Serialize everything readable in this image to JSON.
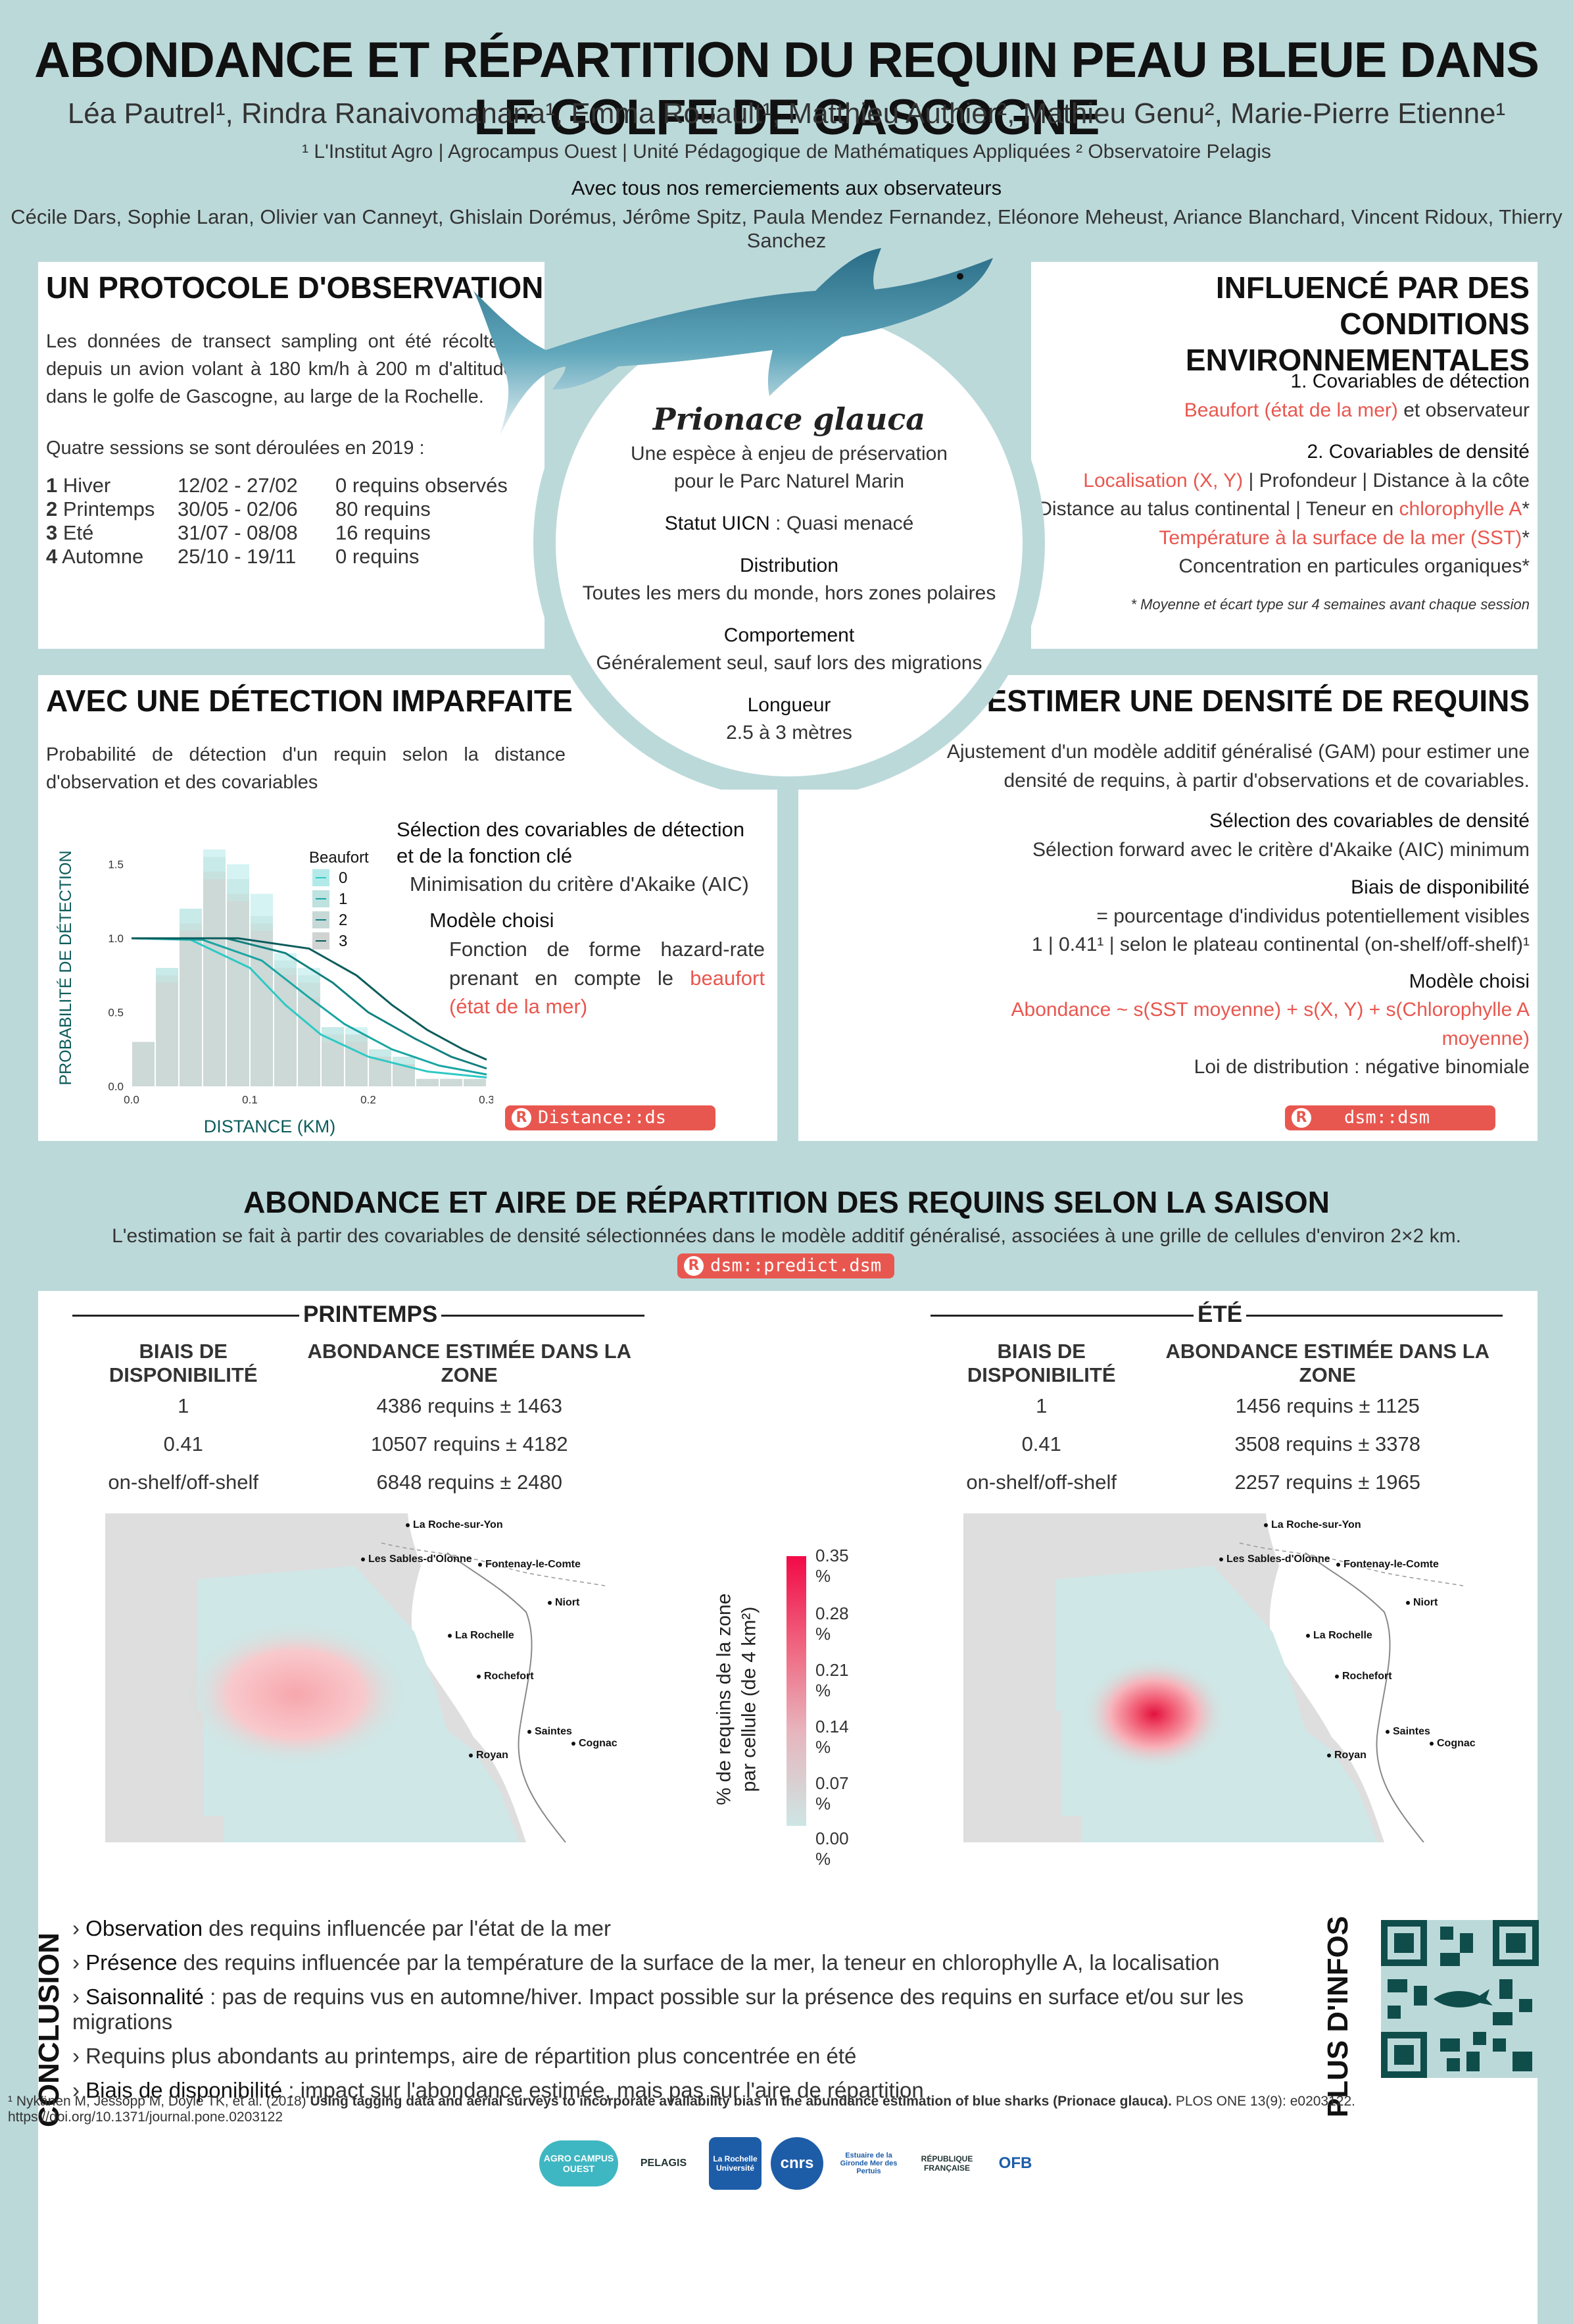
{
  "header": {
    "title": "ABONDANCE ET RÉPARTITION DU REQUIN PEAU BLEUE DANS LE GOLFE DE GASCOGNE",
    "authors": "Léa Pautrel¹, Rindra Ranaivomanana¹, Emma Rouault¹, Matthieu Authier², Mathieu Genu², Marie-Pierre Etienne¹",
    "affiliations": "¹ L'Institut Agro | Agrocampus Ouest | Unité Pédagogique de Mathématiques Appliquées     ² Observatoire Pelagis",
    "thanks_title": "Avec tous nos remerciements aux observateurs",
    "thanks_names": "Cécile Dars, Sophie Laran, Olivier van Canneyt, Ghislain Dorémus, Jérôme Spitz, Paula Mendez Fernandez, Eléonore Meheust, Ariance Blanchard, Vincent Ridoux, Thierry Sanchez"
  },
  "protocol": {
    "title": "UN PROTOCOLE D'OBSERVATION",
    "text": "Les données de transect sampling ont été récoltées depuis un avion volant à 180 km/h à 200 m d'altitude, dans le golfe de Gascogne, au large de la Rochelle.",
    "sessions_intro": "Quatre sessions se sont déroulées en 2019 :",
    "sessions": [
      {
        "num": "1",
        "name": "Hiver",
        "dates": "12/02 - 27/02",
        "count": "0 requins observés"
      },
      {
        "num": "2",
        "name": "Printemps",
        "dates": "30/05 - 02/06",
        "count": "80 requins"
      },
      {
        "num": "3",
        "name": "Eté",
        "dates": "31/07 - 08/08",
        "count": "16 requins"
      },
      {
        "num": "4",
        "name": "Automne",
        "dates": "25/10 - 19/11",
        "count": "0 requins"
      }
    ]
  },
  "species": {
    "name": "Prionace glauca",
    "subtitle1": "Une espèce à enjeu de préservation",
    "subtitle2": "pour le Parc Naturel Marin",
    "uicn_label": "Statut UICN",
    "uicn_value": " : Quasi menacé",
    "distribution_label": "Distribution",
    "distribution_value": "Toutes les mers du monde, hors zones polaires",
    "behaviour_label": "Comportement",
    "behaviour_value": "Généralement seul, sauf lors des migrations",
    "length_label": "Longueur",
    "length_value": "2.5 à 3 mètres"
  },
  "environment": {
    "title_line1": "INFLUENCÉ PAR DES CONDITIONS",
    "title_line2": "ENVIRONNEMENTALES",
    "detect_title": "1. Covariables de détection",
    "detect_red": "Beaufort (état de la mer)",
    "detect_rest": " et observateur",
    "density_title": "2. Covariables de densité",
    "density_l1_red": "Localisation (X, Y)",
    "density_l1_rest": " | Profondeur | Distance à la côte",
    "density_l2_a": "Distance au talus continental | Teneur en ",
    "density_l2_red": "chlorophylle A",
    "density_l2_star": "*",
    "density_l3_red": "Température à la surface de la mer (SST)",
    "density_l3_star": "*",
    "density_l4": "Concentration en particules organiques*",
    "footnote": "* Moyenne et écart type sur 4 semaines avant chaque session"
  },
  "detection": {
    "title": "AVEC UNE DÉTECTION IMPARFAITE",
    "text": "Probabilité de détection d'un requin selon la distance d'observation et des covariables",
    "sel_title": "Sélection des covariables de détection et de la  fonction clé",
    "sel_text": "Minimisation du critère d'Akaike (AIC)",
    "model_title": "Modèle choisi",
    "model_text": "Fonction de forme hazard-rate prenant en compte le ",
    "model_red": "beaufort (état de la mer)",
    "r_package": "Distance::ds"
  },
  "chart_data": {
    "type": "bar",
    "title": "",
    "xlabel": "DISTANCE (KM)",
    "ylabel": "PROBABILITÉ DE DÉTECTION",
    "xlim": [
      0,
      0.3
    ],
    "ylim": [
      0,
      1.6
    ],
    "x_ticks": [
      "0.0",
      "0.1",
      "0.2",
      "0.3"
    ],
    "y_ticks": [
      "0.0",
      "0.5",
      "1.0",
      "1.5"
    ],
    "legend_title": "Beaufort",
    "legend_position": "top-right",
    "bin_width": 0.02,
    "categories": [
      "0.00-0.02",
      "0.02-0.04",
      "0.04-0.06",
      "0.06-0.08",
      "0.08-0.10",
      "0.10-0.12",
      "0.12-0.14",
      "0.14-0.16",
      "0.16-0.18",
      "0.18-0.20",
      "0.20-0.22",
      "0.22-0.24",
      "0.24-0.26",
      "0.26-0.28",
      "0.28-0.30"
    ],
    "series": [
      {
        "name": "0",
        "color": "#b3eae9",
        "values": [
          0.3,
          0.8,
          1.2,
          1.6,
          1.5,
          1.3,
          0.9,
          0.8,
          0.4,
          0.4,
          0.25,
          0.2,
          0.05,
          0.05,
          0.05
        ]
      },
      {
        "name": "1",
        "color": "#bde2df",
        "values": [
          0.3,
          0.8,
          1.2,
          1.55,
          1.4,
          1.15,
          0.85,
          0.75,
          0.4,
          0.35,
          0.25,
          0.2,
          0.05,
          0.05,
          0.05
        ]
      },
      {
        "name": "2",
        "color": "#c7d9d6",
        "values": [
          0.3,
          0.75,
          1.1,
          1.45,
          1.3,
          1.1,
          0.8,
          0.7,
          0.35,
          0.35,
          0.2,
          0.15,
          0.05,
          0.05,
          0.05
        ]
      },
      {
        "name": "3",
        "color": "#cfd4d2",
        "values": [
          0.3,
          0.7,
          1.05,
          1.4,
          1.25,
          1.05,
          0.75,
          0.6,
          0.3,
          0.3,
          0.2,
          0.15,
          0.05,
          0.05,
          0.05
        ]
      }
    ],
    "curves": [
      {
        "name": "0",
        "color": "#2ec9c4",
        "points": [
          [
            0,
            1.0
          ],
          [
            0.05,
            0.99
          ],
          [
            0.1,
            0.8
          ],
          [
            0.13,
            0.55
          ],
          [
            0.16,
            0.35
          ],
          [
            0.2,
            0.2
          ],
          [
            0.25,
            0.1
          ],
          [
            0.3,
            0.06
          ]
        ]
      },
      {
        "name": "1",
        "color": "#1aa5a3",
        "points": [
          [
            0,
            1.0
          ],
          [
            0.06,
            0.99
          ],
          [
            0.11,
            0.85
          ],
          [
            0.15,
            0.6
          ],
          [
            0.18,
            0.42
          ],
          [
            0.22,
            0.25
          ],
          [
            0.26,
            0.14
          ],
          [
            0.3,
            0.08
          ]
        ]
      },
      {
        "name": "2",
        "color": "#11807f",
        "points": [
          [
            0,
            1.0
          ],
          [
            0.08,
            1.0
          ],
          [
            0.13,
            0.9
          ],
          [
            0.17,
            0.7
          ],
          [
            0.2,
            0.5
          ],
          [
            0.24,
            0.32
          ],
          [
            0.27,
            0.2
          ],
          [
            0.3,
            0.12
          ]
        ]
      },
      {
        "name": "3",
        "color": "#0b5c5b",
        "points": [
          [
            0,
            1.0
          ],
          [
            0.09,
            1.0
          ],
          [
            0.15,
            0.93
          ],
          [
            0.19,
            0.75
          ],
          [
            0.22,
            0.55
          ],
          [
            0.25,
            0.38
          ],
          [
            0.28,
            0.25
          ],
          [
            0.3,
            0.18
          ]
        ]
      }
    ]
  },
  "density": {
    "title": "POUR ESTIMER UNE DENSITÉ DE REQUINS",
    "text": "Ajustement d'un modèle additif généralisé (GAM) pour estimer une densité de requins, à partir d'observations et de covariables.",
    "sel_title": "Sélection des covariables de densité",
    "sel_text": "Sélection forward avec le critère d'Akaike (AIC) minimum",
    "bias_title": "Biais de disponibilité",
    "bias_l1": "= pourcentage d'individus potentiellement visibles",
    "bias_l2": "1 | 0.41¹ | selon le plateau continental (on-shelf/off-shelf)¹",
    "model_title": "Modèle choisi",
    "model_red": "Abondance ~ s(SST moyenne) + s(X, Y) + s(Chlorophylle A moyenne)",
    "model_law": "Loi de distribution : négative binomiale",
    "r_package": "dsm::dsm"
  },
  "season": {
    "title": "ABONDANCE ET AIRE DE RÉPARTITION DES REQUINS SELON LA SAISON",
    "subtitle": "L'estimation se fait à partir des covariables de densité sélectionnées dans le modèle additif généralisé, associées à une grille de cellules d'environ 2×2 km.",
    "r_package": "dsm::predict.dsm",
    "col_bias": "BIAIS DE DISPONIBILITÉ",
    "col_abund": "ABONDANCE ESTIMÉE DANS LA ZONE",
    "spring": {
      "label": "PRINTEMPS",
      "rows": [
        {
          "bias": "1",
          "abund": "4386 requins ± 1463"
        },
        {
          "bias": "0.41",
          "abund": "10507 requins ± 4182"
        },
        {
          "bias": "on-shelf/off-shelf",
          "abund": "6848 requins ± 2480"
        }
      ]
    },
    "summer": {
      "label": "ÉTÉ",
      "rows": [
        {
          "bias": "1",
          "abund": "1456 requins ± 1125"
        },
        {
          "bias": "0.41",
          "abund": "3508 requins ± 3378"
        },
        {
          "bias": "on-shelf/off-shelf",
          "abund": "2257 requins ± 1965"
        }
      ]
    },
    "cities": [
      "La Roche-sur-Yon",
      "Les Sables-d'Olonne",
      "Fontenay-le-Comte",
      "Niort",
      "La Rochelle",
      "Rochefort",
      "Saintes",
      "Cognac",
      "Royan"
    ],
    "legend_title": "% de requins de la zone",
    "legend_title2": "par cellule (de 4 km²)",
    "legend_ticks": [
      "0.35 %",
      "0.28 %",
      "0.21 %",
      "0.14 %",
      "0.07 %",
      "0.00 %"
    ]
  },
  "conclusion": {
    "title": "CONCLUSION",
    "items": [
      {
        "lead": "Observation",
        "rest": " des requins influencée par l'état de la mer"
      },
      {
        "lead": "Présence",
        "rest": " des requins influencée par la température de la surface de la mer, la teneur en chlorophylle A, la localisation"
      },
      {
        "lead": "Saisonnalité",
        "rest": " : pas de requins vus en automne/hiver. Impact possible sur la présence des requins en surface et/ou sur les migrations"
      },
      {
        "lead": "Requins plus abondants au printemps, aire de répartition plus concentrée en été",
        "rest": ""
      },
      {
        "lead": "Biais de disponibilité",
        "rest": " : impact sur l'abondance estimée, mais pas sur l'aire de répartition"
      }
    ],
    "more_info": "PLUS D'INFOS"
  },
  "reference": {
    "prefix": "¹ Nykänen M, Jessopp M, Doyle TK, et al. (2018) ",
    "title": "Using tagging data and aerial surveys to incorporate availability bias in the abundance estimation of blue sharks (Prionace glauca).",
    "suffix": " PLOS ONE 13(9): e0203122. https://doi.org/10.1371/journal.pone.0203122"
  },
  "logos": [
    "AGRO CAMPUS OUEST",
    "PELAGIS",
    "La Rochelle Université",
    "cnrs",
    "Estuaire de la Gironde Mer des Pertuis",
    "RÉPUBLIQUE FRANÇAISE",
    "OFB"
  ],
  "colors": {
    "accent": "#e8574f",
    "background": "#bcd9da",
    "teal": "#2ec9c4"
  }
}
